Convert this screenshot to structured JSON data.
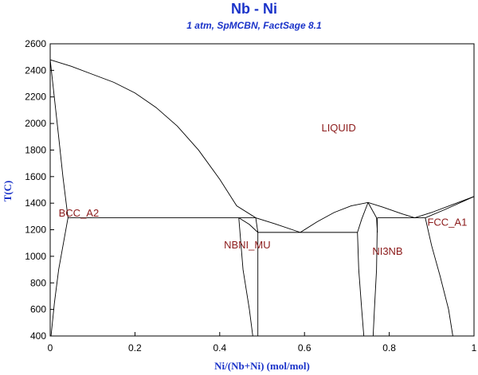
{
  "chart_data": {
    "type": "line",
    "title": "Nb - Ni",
    "subtitle": "1 atm, SpMCBN, FactSage 8.1",
    "xlabel": "Ni/(Nb+Ni) (mol/mol)",
    "ylabel": "T(C)",
    "xlim": [
      0,
      1
    ],
    "ylim": [
      400,
      2600
    ],
    "xticks": [
      "0",
      "0.2",
      "0.4",
      "0.6",
      "0.8",
      "1"
    ],
    "xtick_values": [
      0,
      0.2,
      0.4,
      0.6,
      0.8,
      1
    ],
    "yticks": [
      "400",
      "600",
      "800",
      "1000",
      "1200",
      "1400",
      "1600",
      "1800",
      "2000",
      "2200",
      "2400",
      "2600"
    ],
    "ytick_values": [
      400,
      600,
      800,
      1000,
      1200,
      1400,
      1600,
      1800,
      2000,
      2200,
      2400,
      2600
    ],
    "grid": false,
    "phase_labels": [
      {
        "text": "LIQUID",
        "x": 0.64,
        "y": 1940
      },
      {
        "text": "BCC_A2",
        "x": 0.02,
        "y": 1300
      },
      {
        "text": "NBNI_MU",
        "x": 0.41,
        "y": 1060
      },
      {
        "text": "NI3NB",
        "x": 0.76,
        "y": 1010
      },
      {
        "text": "FCC_A1",
        "x": 0.89,
        "y": 1230
      }
    ],
    "series": [
      {
        "values": [
          [
            0.0,
            2480
          ],
          [
            0.05,
            2430
          ],
          [
            0.1,
            2370
          ],
          [
            0.15,
            2310
          ],
          [
            0.2,
            2230
          ],
          [
            0.25,
            2120
          ],
          [
            0.3,
            1980
          ],
          [
            0.35,
            1800
          ],
          [
            0.4,
            1580
          ],
          [
            0.44,
            1380
          ],
          [
            0.485,
            1290
          ],
          [
            0.53,
            1245
          ],
          [
            0.59,
            1180
          ]
        ]
      },
      {
        "values": [
          [
            0.59,
            1180
          ],
          [
            0.63,
            1260
          ],
          [
            0.67,
            1330
          ],
          [
            0.71,
            1380
          ],
          [
            0.75,
            1405
          ],
          [
            0.785,
            1370
          ],
          [
            0.83,
            1320
          ],
          [
            0.86,
            1290
          ],
          [
            0.9,
            1330
          ],
          [
            0.95,
            1390
          ],
          [
            1.0,
            1450
          ]
        ]
      },
      {
        "values": [
          [
            0.0,
            2480
          ],
          [
            0.02,
            1900
          ],
          [
            0.03,
            1600
          ],
          [
            0.042,
            1290
          ]
        ]
      },
      {
        "values": [
          [
            0.0,
            2480
          ],
          [
            0.0,
            1800
          ],
          [
            0.0,
            400
          ]
        ]
      },
      {
        "values": [
          [
            0.042,
            1290
          ],
          [
            0.02,
            900
          ],
          [
            0.01,
            650
          ],
          [
            0.002,
            400
          ]
        ]
      },
      {
        "values": [
          [
            0.042,
            1290
          ],
          [
            0.45,
            1290
          ],
          [
            0.485,
            1290
          ]
        ]
      },
      {
        "values": [
          [
            0.445,
            1290
          ],
          [
            0.455,
            900
          ],
          [
            0.47,
            600
          ],
          [
            0.478,
            400
          ]
        ]
      },
      {
        "values": [
          [
            0.445,
            1290
          ],
          [
            0.47,
            1240
          ],
          [
            0.49,
            1180
          ]
        ]
      },
      {
        "values": [
          [
            0.49,
            1180
          ],
          [
            0.49,
            400
          ]
        ]
      },
      {
        "values": [
          [
            0.485,
            1290
          ],
          [
            0.49,
            1180
          ]
        ]
      },
      {
        "values": [
          [
            0.49,
            1180
          ],
          [
            0.725,
            1180
          ]
        ]
      },
      {
        "values": [
          [
            0.725,
            1180
          ],
          [
            0.728,
            900
          ],
          [
            0.735,
            600
          ],
          [
            0.74,
            400
          ]
        ]
      },
      {
        "values": [
          [
            0.725,
            1180
          ],
          [
            0.735,
            1280
          ],
          [
            0.75,
            1405
          ]
        ]
      },
      {
        "values": [
          [
            0.75,
            1405
          ],
          [
            0.77,
            1290
          ],
          [
            0.772,
            1180
          ]
        ]
      },
      {
        "values": [
          [
            0.772,
            1290
          ],
          [
            0.77,
            900
          ],
          [
            0.765,
            600
          ],
          [
            0.762,
            400
          ]
        ]
      },
      {
        "values": [
          [
            0.772,
            1290
          ],
          [
            0.885,
            1290
          ]
        ]
      },
      {
        "values": [
          [
            0.885,
            1290
          ],
          [
            0.9,
            1080
          ],
          [
            0.92,
            850
          ],
          [
            0.94,
            600
          ],
          [
            0.95,
            400
          ]
        ]
      },
      {
        "values": [
          [
            0.885,
            1290
          ],
          [
            0.93,
            1350
          ],
          [
            1.0,
            1450
          ]
        ]
      }
    ]
  }
}
